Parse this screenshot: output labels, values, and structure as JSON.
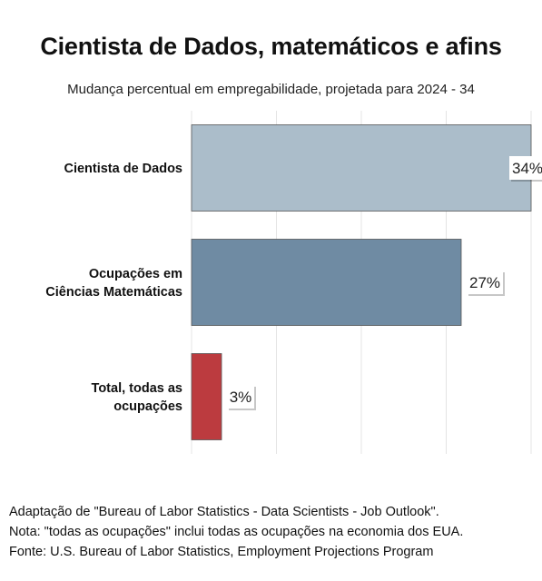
{
  "chart_data": {
    "type": "bar",
    "orientation": "horizontal",
    "title": "Cientista de Dados, matemáticos e afins",
    "subtitle": "Mudança percentual em empregabilidade, projetada para 2024 - 34",
    "categories": [
      [
        "Cientista de Dados"
      ],
      [
        "Ocupações em",
        "Ciências Matemáticas"
      ],
      [
        "Total, todas as",
        "ocupações"
      ]
    ],
    "values": [
      34,
      27,
      3
    ],
    "data_labels": [
      "34%",
      "27%",
      "3%"
    ],
    "colors": [
      "#abbdca",
      "#6f8ba3",
      "#bc3b3f"
    ],
    "xlim": [
      0,
      34
    ],
    "grid": true,
    "legend": "none"
  },
  "notes": {
    "line1": "Adaptação de \"Bureau of Labor Statistics - Data Scientists - Job Outlook\".",
    "line2": "Nota: \"todas as ocupações\" inclui todas as ocupações na economia dos EUA.",
    "line3": "Fonte: U.S. Bureau of Labor Statistics, Employment Projections Program"
  }
}
